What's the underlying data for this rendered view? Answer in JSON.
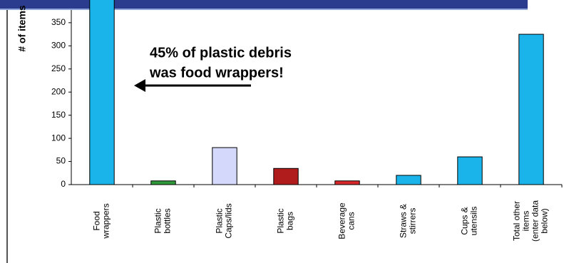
{
  "chart_data": {
    "type": "bar",
    "ylabel": "# of items",
    "annotation": [
      "45% of plastic debris",
      "was food wrappers!"
    ],
    "categories": [
      [
        "Food",
        "wrappers"
      ],
      [
        "Plastic",
        "bottles"
      ],
      [
        "Plastic",
        "Caps/lids"
      ],
      [
        "Plastic",
        "bags"
      ],
      [
        "Beverage",
        "cans"
      ],
      [
        "Straws &",
        "stirrers"
      ],
      [
        "Cups &",
        "utensils"
      ],
      [
        "Total other",
        "items",
        "(enter data",
        "below)"
      ]
    ],
    "values": [
      420,
      8,
      80,
      35,
      8,
      20,
      60,
      325
    ],
    "colors": [
      "#1ab4ea",
      "#2e9a3a",
      "#d4d8fa",
      "#b01c1c",
      "#d8282a",
      "#1ab4ea",
      "#1ab4ea",
      "#1ab4ea"
    ],
    "ylim": [
      0,
      400
    ],
    "yticks": [
      0,
      50,
      100,
      150,
      200,
      250,
      300,
      350
    ],
    "grid": false
  }
}
